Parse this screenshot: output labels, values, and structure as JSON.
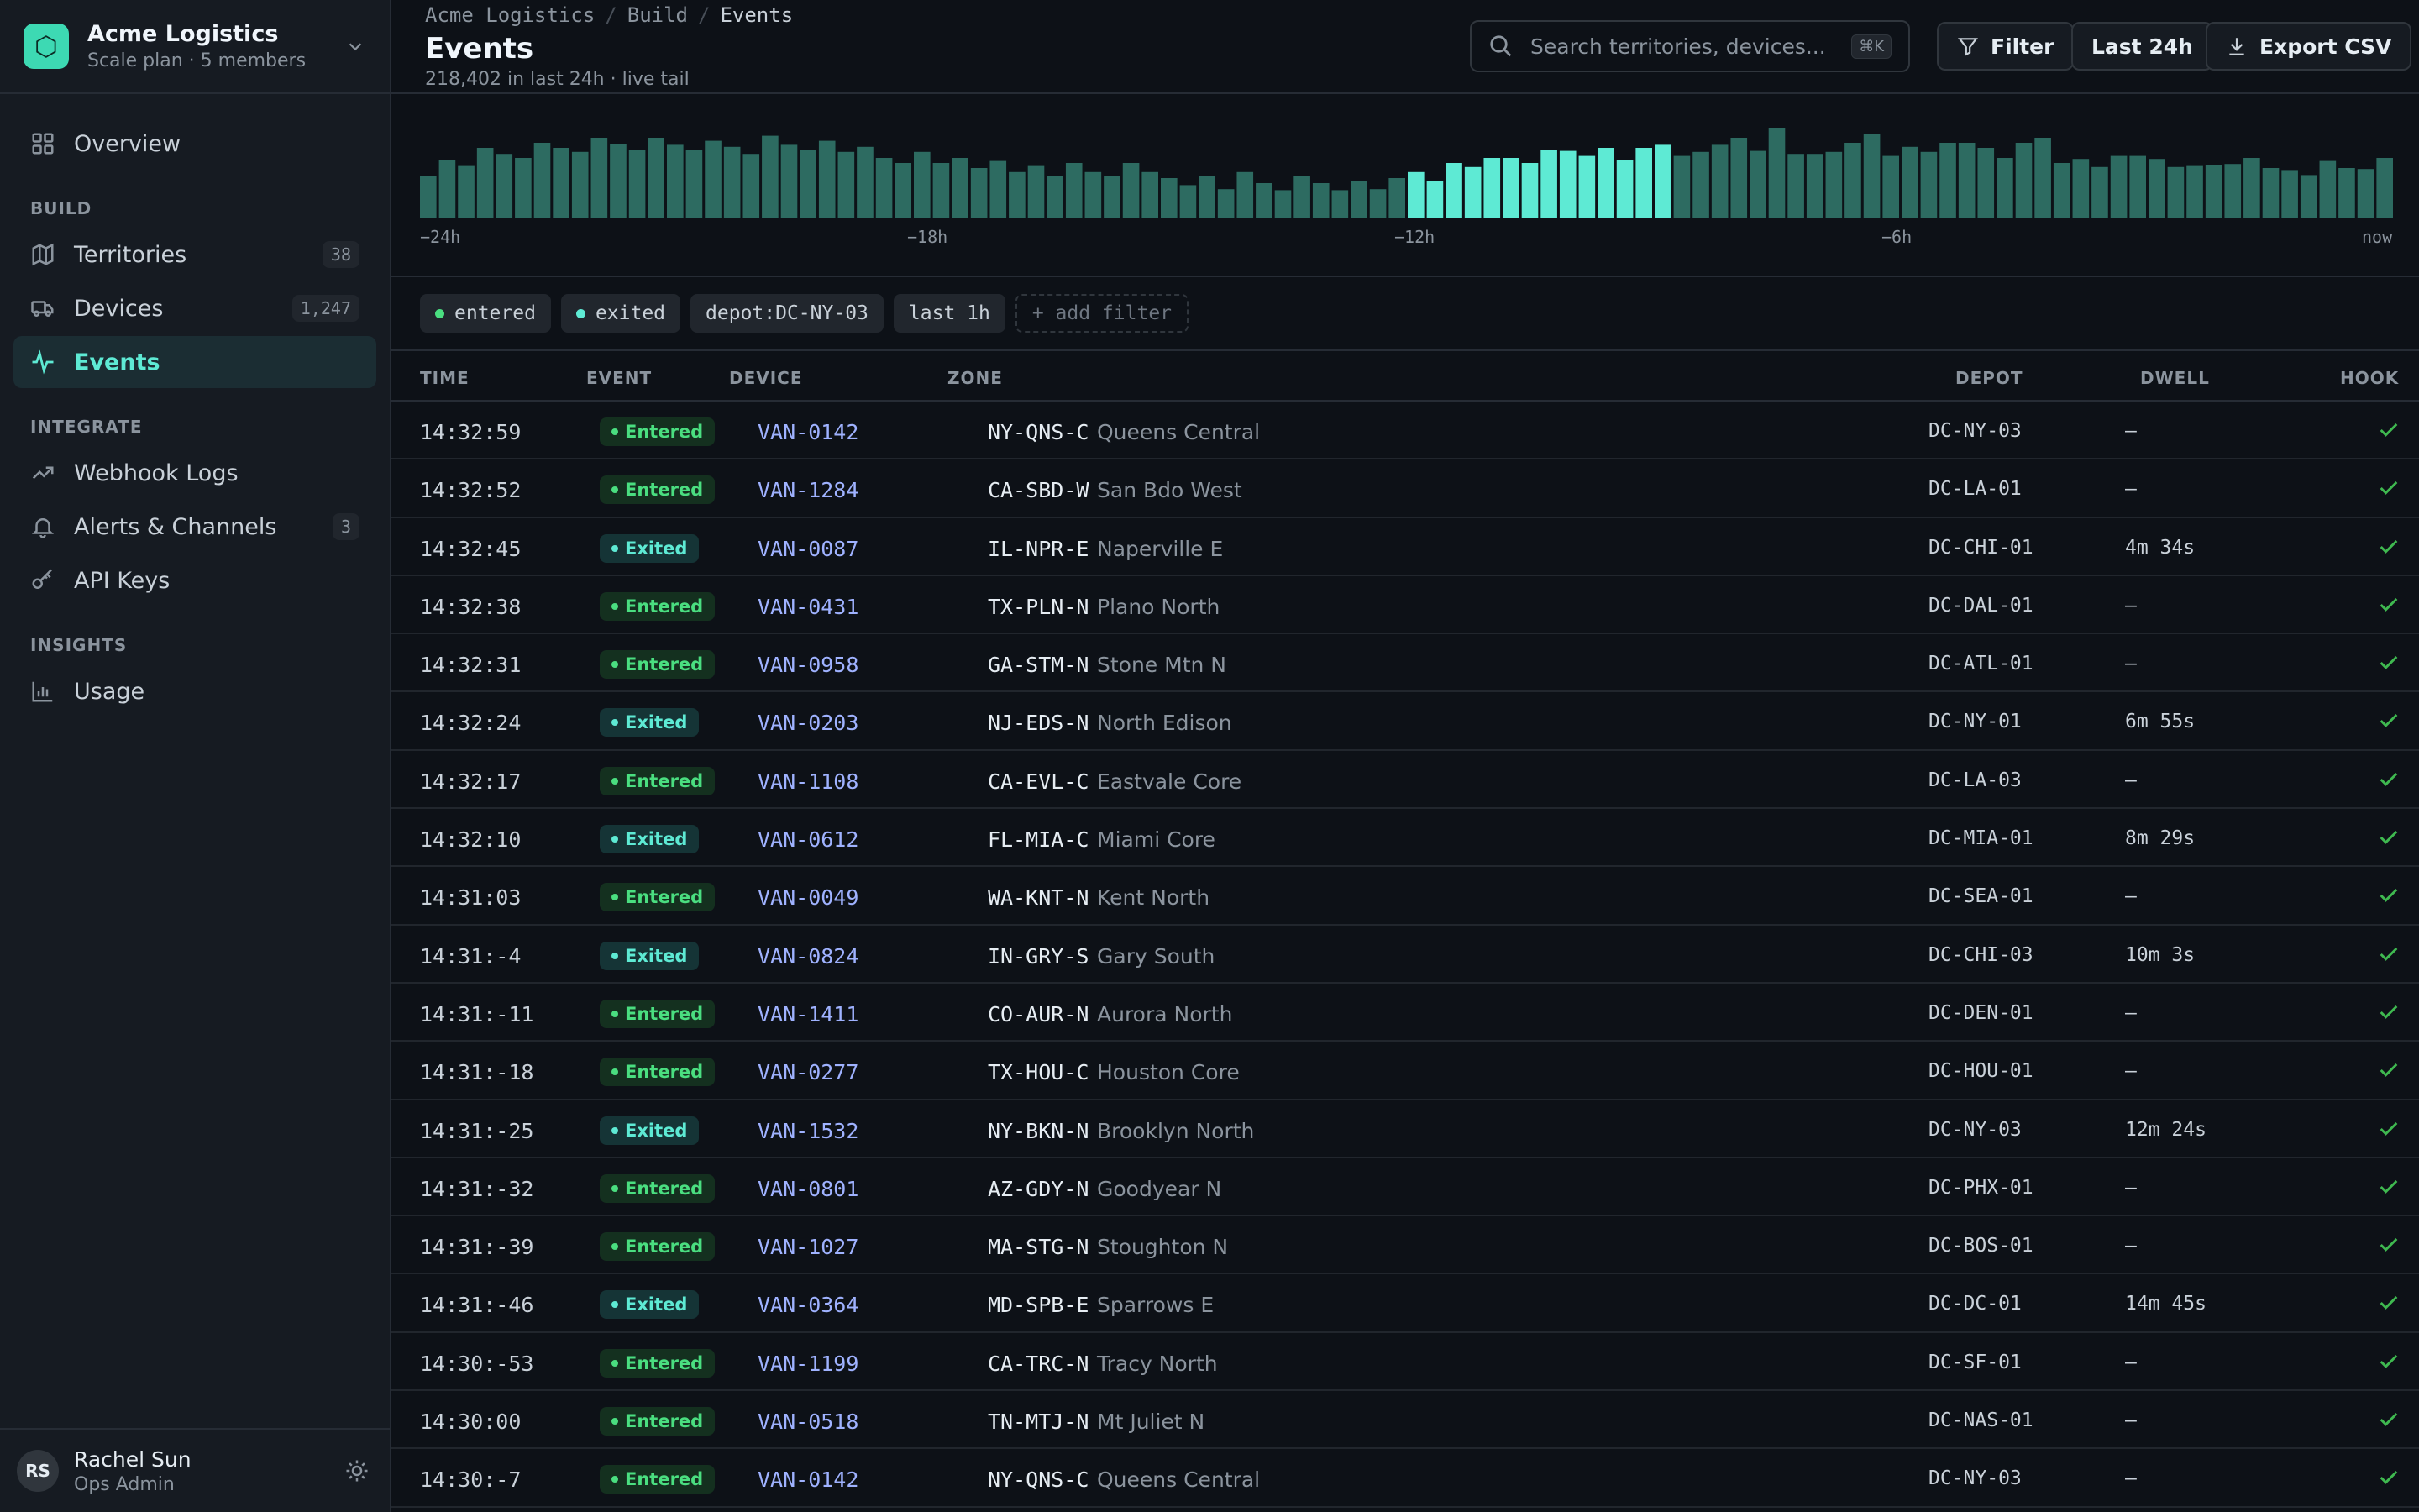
{
  "workspace": {
    "name": "Acme Logistics",
    "plan": "Scale plan · 5 members"
  },
  "nav": {
    "overview": "Overview",
    "build_label": "BUILD",
    "territories": {
      "label": "Territories",
      "count": "38"
    },
    "devices": {
      "label": "Devices",
      "count": "1,247"
    },
    "events": "Events",
    "integrate_label": "INTEGRATE",
    "webhook_logs": "Webhook Logs",
    "alerts": {
      "label": "Alerts & Channels",
      "count": "3"
    },
    "api_keys": "API Keys",
    "insights_label": "INSIGHTS",
    "usage": "Usage"
  },
  "user": {
    "initials": "RS",
    "name": "Rachel Sun",
    "role": "Ops Admin"
  },
  "header": {
    "breadcrumb": [
      "Acme Logistics",
      "Build",
      "Events"
    ],
    "title": "Events",
    "subtitle": "218,402 in last 24h · live tail",
    "search_placeholder": "Search territories, devices...",
    "search_shortcut": "⌘K",
    "filter_label": "Filter",
    "range_label": "Last 24h",
    "export_label": "Export CSV"
  },
  "histogram": {
    "axis_labels": [
      "−24h",
      "−18h",
      "−12h",
      "−6h",
      "now"
    ],
    "values": [
      42,
      58,
      52,
      70,
      64,
      60,
      75,
      70,
      66,
      80,
      74,
      68,
      80,
      73,
      68,
      77,
      71,
      64,
      82,
      73,
      68,
      77,
      66,
      71,
      60,
      55,
      66,
      55,
      60,
      50,
      57,
      46,
      52,
      42,
      55,
      46,
      42,
      55,
      46,
      40,
      33,
      42,
      29,
      46,
      35,
      28,
      42,
      35,
      28,
      37,
      29,
      40,
      46,
      37,
      55,
      51,
      60,
      60,
      55,
      68,
      67,
      62,
      70,
      58,
      70,
      73,
      62,
      66,
      73,
      80,
      67,
      90,
      64,
      64,
      66,
      75,
      84,
      62,
      71,
      66,
      75,
      75,
      70,
      60,
      75,
      80,
      55,
      59,
      51,
      62,
      62,
      59,
      51,
      52,
      53,
      54,
      60,
      50,
      48,
      43,
      57,
      50,
      49,
      60
    ],
    "highlight_start": 52,
    "highlight_end": 65,
    "colors": {
      "bar": "#2d6b61",
      "highlight": "#5eead4"
    }
  },
  "filters": {
    "chips": [
      {
        "label": "entered",
        "dot": "#4ade80"
      },
      {
        "label": "exited",
        "dot": "#5eead4"
      },
      {
        "label": "depot:DC-NY-03",
        "dot": ""
      },
      {
        "label": "last 1h",
        "dot": ""
      }
    ],
    "add_label": "+ add filter"
  },
  "table": {
    "columns": {
      "time": "TIME",
      "event": "EVENT",
      "device": "DEVICE",
      "zone": "ZONE",
      "depot": "DEPOT",
      "dwell": "DWELL",
      "hook": "HOOK"
    },
    "rows": [
      {
        "time": "14:32:59",
        "event": "Entered",
        "device": "VAN-0142",
        "zone_code": "NY-QNS-C",
        "zone_name": "Queens Central",
        "depot": "DC-NY-03",
        "dwell": "—"
      },
      {
        "time": "14:32:52",
        "event": "Entered",
        "device": "VAN-1284",
        "zone_code": "CA-SBD-W",
        "zone_name": "San Bdo West",
        "depot": "DC-LA-01",
        "dwell": "—"
      },
      {
        "time": "14:32:45",
        "event": "Exited",
        "device": "VAN-0087",
        "zone_code": "IL-NPR-E",
        "zone_name": "Naperville E",
        "depot": "DC-CHI-01",
        "dwell": "4m 34s"
      },
      {
        "time": "14:32:38",
        "event": "Entered",
        "device": "VAN-0431",
        "zone_code": "TX-PLN-N",
        "zone_name": "Plano North",
        "depot": "DC-DAL-01",
        "dwell": "—"
      },
      {
        "time": "14:32:31",
        "event": "Entered",
        "device": "VAN-0958",
        "zone_code": "GA-STM-N",
        "zone_name": "Stone Mtn N",
        "depot": "DC-ATL-01",
        "dwell": "—"
      },
      {
        "time": "14:32:24",
        "event": "Exited",
        "device": "VAN-0203",
        "zone_code": "NJ-EDS-N",
        "zone_name": "North Edison",
        "depot": "DC-NY-01",
        "dwell": "6m 55s"
      },
      {
        "time": "14:32:17",
        "event": "Entered",
        "device": "VAN-1108",
        "zone_code": "CA-EVL-C",
        "zone_name": "Eastvale Core",
        "depot": "DC-LA-03",
        "dwell": "—"
      },
      {
        "time": "14:32:10",
        "event": "Exited",
        "device": "VAN-0612",
        "zone_code": "FL-MIA-C",
        "zone_name": "Miami Core",
        "depot": "DC-MIA-01",
        "dwell": "8m 29s"
      },
      {
        "time": "14:31:03",
        "event": "Entered",
        "device": "VAN-0049",
        "zone_code": "WA-KNT-N",
        "zone_name": "Kent North",
        "depot": "DC-SEA-01",
        "dwell": "—"
      },
      {
        "time": "14:31:-4",
        "event": "Exited",
        "device": "VAN-0824",
        "zone_code": "IN-GRY-S",
        "zone_name": "Gary South",
        "depot": "DC-CHI-03",
        "dwell": "10m 3s"
      },
      {
        "time": "14:31:-11",
        "event": "Entered",
        "device": "VAN-1411",
        "zone_code": "CO-AUR-N",
        "zone_name": "Aurora North",
        "depot": "DC-DEN-01",
        "dwell": "—"
      },
      {
        "time": "14:31:-18",
        "event": "Entered",
        "device": "VAN-0277",
        "zone_code": "TX-HOU-C",
        "zone_name": "Houston Core",
        "depot": "DC-HOU-01",
        "dwell": "—"
      },
      {
        "time": "14:31:-25",
        "event": "Exited",
        "device": "VAN-1532",
        "zone_code": "NY-BKN-N",
        "zone_name": "Brooklyn North",
        "depot": "DC-NY-03",
        "dwell": "12m 24s"
      },
      {
        "time": "14:31:-32",
        "event": "Entered",
        "device": "VAN-0801",
        "zone_code": "AZ-GDY-N",
        "zone_name": "Goodyear N",
        "depot": "DC-PHX-01",
        "dwell": "—"
      },
      {
        "time": "14:31:-39",
        "event": "Entered",
        "device": "VAN-1027",
        "zone_code": "MA-STG-N",
        "zone_name": "Stoughton N",
        "depot": "DC-BOS-01",
        "dwell": "—"
      },
      {
        "time": "14:31:-46",
        "event": "Exited",
        "device": "VAN-0364",
        "zone_code": "MD-SPB-E",
        "zone_name": "Sparrows E",
        "depot": "DC-DC-01",
        "dwell": "14m 45s"
      },
      {
        "time": "14:30:-53",
        "event": "Entered",
        "device": "VAN-1199",
        "zone_code": "CA-TRC-N",
        "zone_name": "Tracy North",
        "depot": "DC-SF-01",
        "dwell": "—"
      },
      {
        "time": "14:30:00",
        "event": "Entered",
        "device": "VAN-0518",
        "zone_code": "TN-MTJ-N",
        "zone_name": "Mt Juliet N",
        "depot": "DC-NAS-01",
        "dwell": "—"
      },
      {
        "time": "14:30:-7",
        "event": "Entered",
        "device": "VAN-0142",
        "zone_code": "NY-QNS-C",
        "zone_name": "Queens Central",
        "depot": "DC-NY-03",
        "dwell": "—"
      }
    ]
  }
}
